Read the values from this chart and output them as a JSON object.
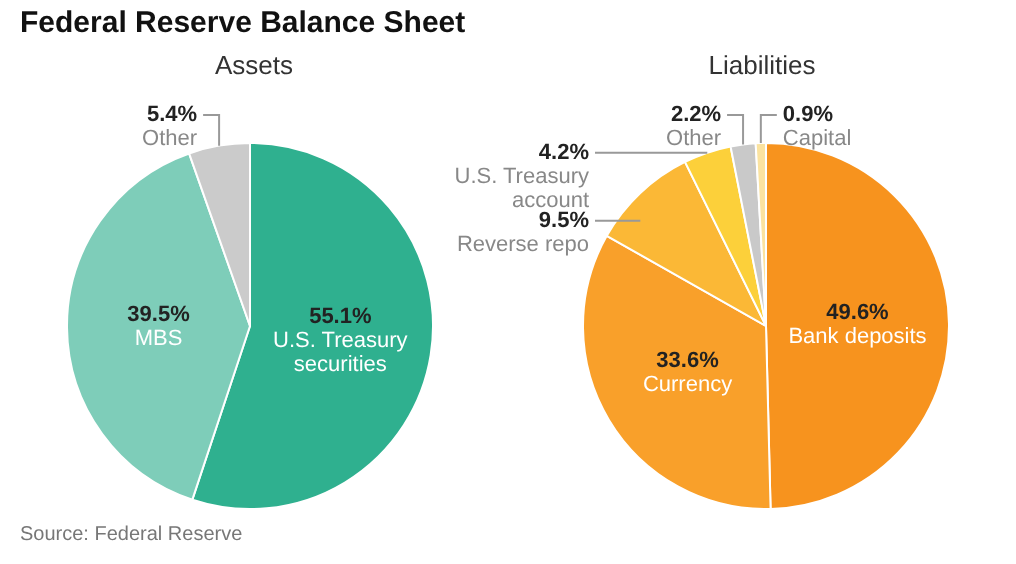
{
  "chart_data": [
    {
      "type": "pie",
      "title": "Federal Reserve Balance Sheet",
      "subtitle": "Assets",
      "categories": [
        "U.S. Treasury securities",
        "MBS",
        "Other"
      ],
      "values": [
        55.1,
        39.5,
        5.4
      ],
      "value_labels": [
        "55.1%",
        "39.5%",
        "5.4%"
      ],
      "colors": [
        "#2fb08f",
        "#7ecdb9",
        "#cbcbcb"
      ],
      "annotations": [
        "Source: Federal Reserve"
      ]
    },
    {
      "type": "pie",
      "title": "Liabilities",
      "categories": [
        "Bank deposits",
        "Currency",
        "Reverse repo",
        "U.S. Treasury account",
        "Other",
        "Capital"
      ],
      "values": [
        49.6,
        33.6,
        9.5,
        4.2,
        2.2,
        0.9
      ],
      "value_labels": [
        "49.6%",
        "33.6%",
        "9.5%",
        "4.2%",
        "2.2%",
        "0.9%"
      ],
      "colors": [
        "#f7931e",
        "#f9a02a",
        "#fbb836",
        "#fcd03a",
        "#c9c9c9",
        "#fbe3a0"
      ]
    }
  ]
}
